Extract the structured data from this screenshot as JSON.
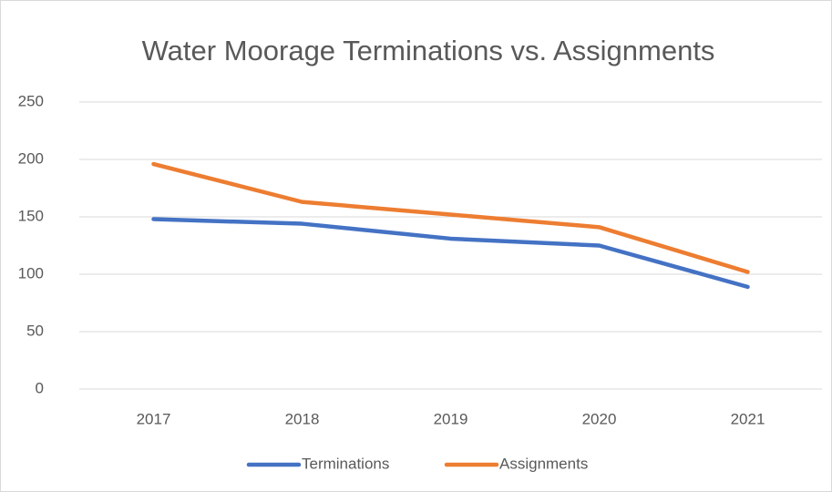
{
  "chart_data": {
    "type": "line",
    "title": "Water Moorage Terminations vs. Assignments",
    "categories": [
      "2017",
      "2018",
      "2019",
      "2020",
      "2021"
    ],
    "series": [
      {
        "name": "Terminations",
        "color": "#4472c4",
        "values": [
          148,
          144,
          131,
          125,
          89
        ]
      },
      {
        "name": "Assignments",
        "color": "#ed7d31",
        "values": [
          196,
          163,
          152,
          141,
          102
        ]
      }
    ],
    "ylim": [
      0,
      250
    ],
    "yticks": [
      0,
      50,
      100,
      150,
      200,
      250
    ],
    "grid": true,
    "legend": "bottom"
  }
}
